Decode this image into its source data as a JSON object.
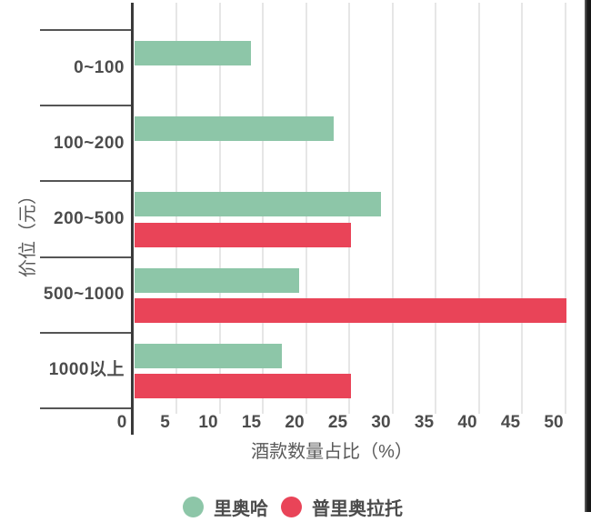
{
  "chart_data": {
    "type": "bar",
    "orientation": "horizontal",
    "title": "",
    "xlabel": "酒款数量占比（%）",
    "ylabel": "价位（元）",
    "categories": [
      "0~100",
      "100~200",
      "200~500",
      "500~1000",
      "1000以上"
    ],
    "series": [
      {
        "name": "里奥哈",
        "color": "#8dc6a8",
        "values": [
          13.5,
          23,
          28.5,
          19,
          17
        ]
      },
      {
        "name": "普里奥拉托",
        "color": "#e94458",
        "values": [
          0,
          0,
          25,
          50,
          25
        ]
      }
    ],
    "x_ticks": [
      0,
      5,
      10,
      15,
      20,
      25,
      30,
      35,
      40,
      45,
      50
    ],
    "xlim": [
      0,
      52.3
    ],
    "grid": "vertical",
    "legend_position": "bottom"
  }
}
